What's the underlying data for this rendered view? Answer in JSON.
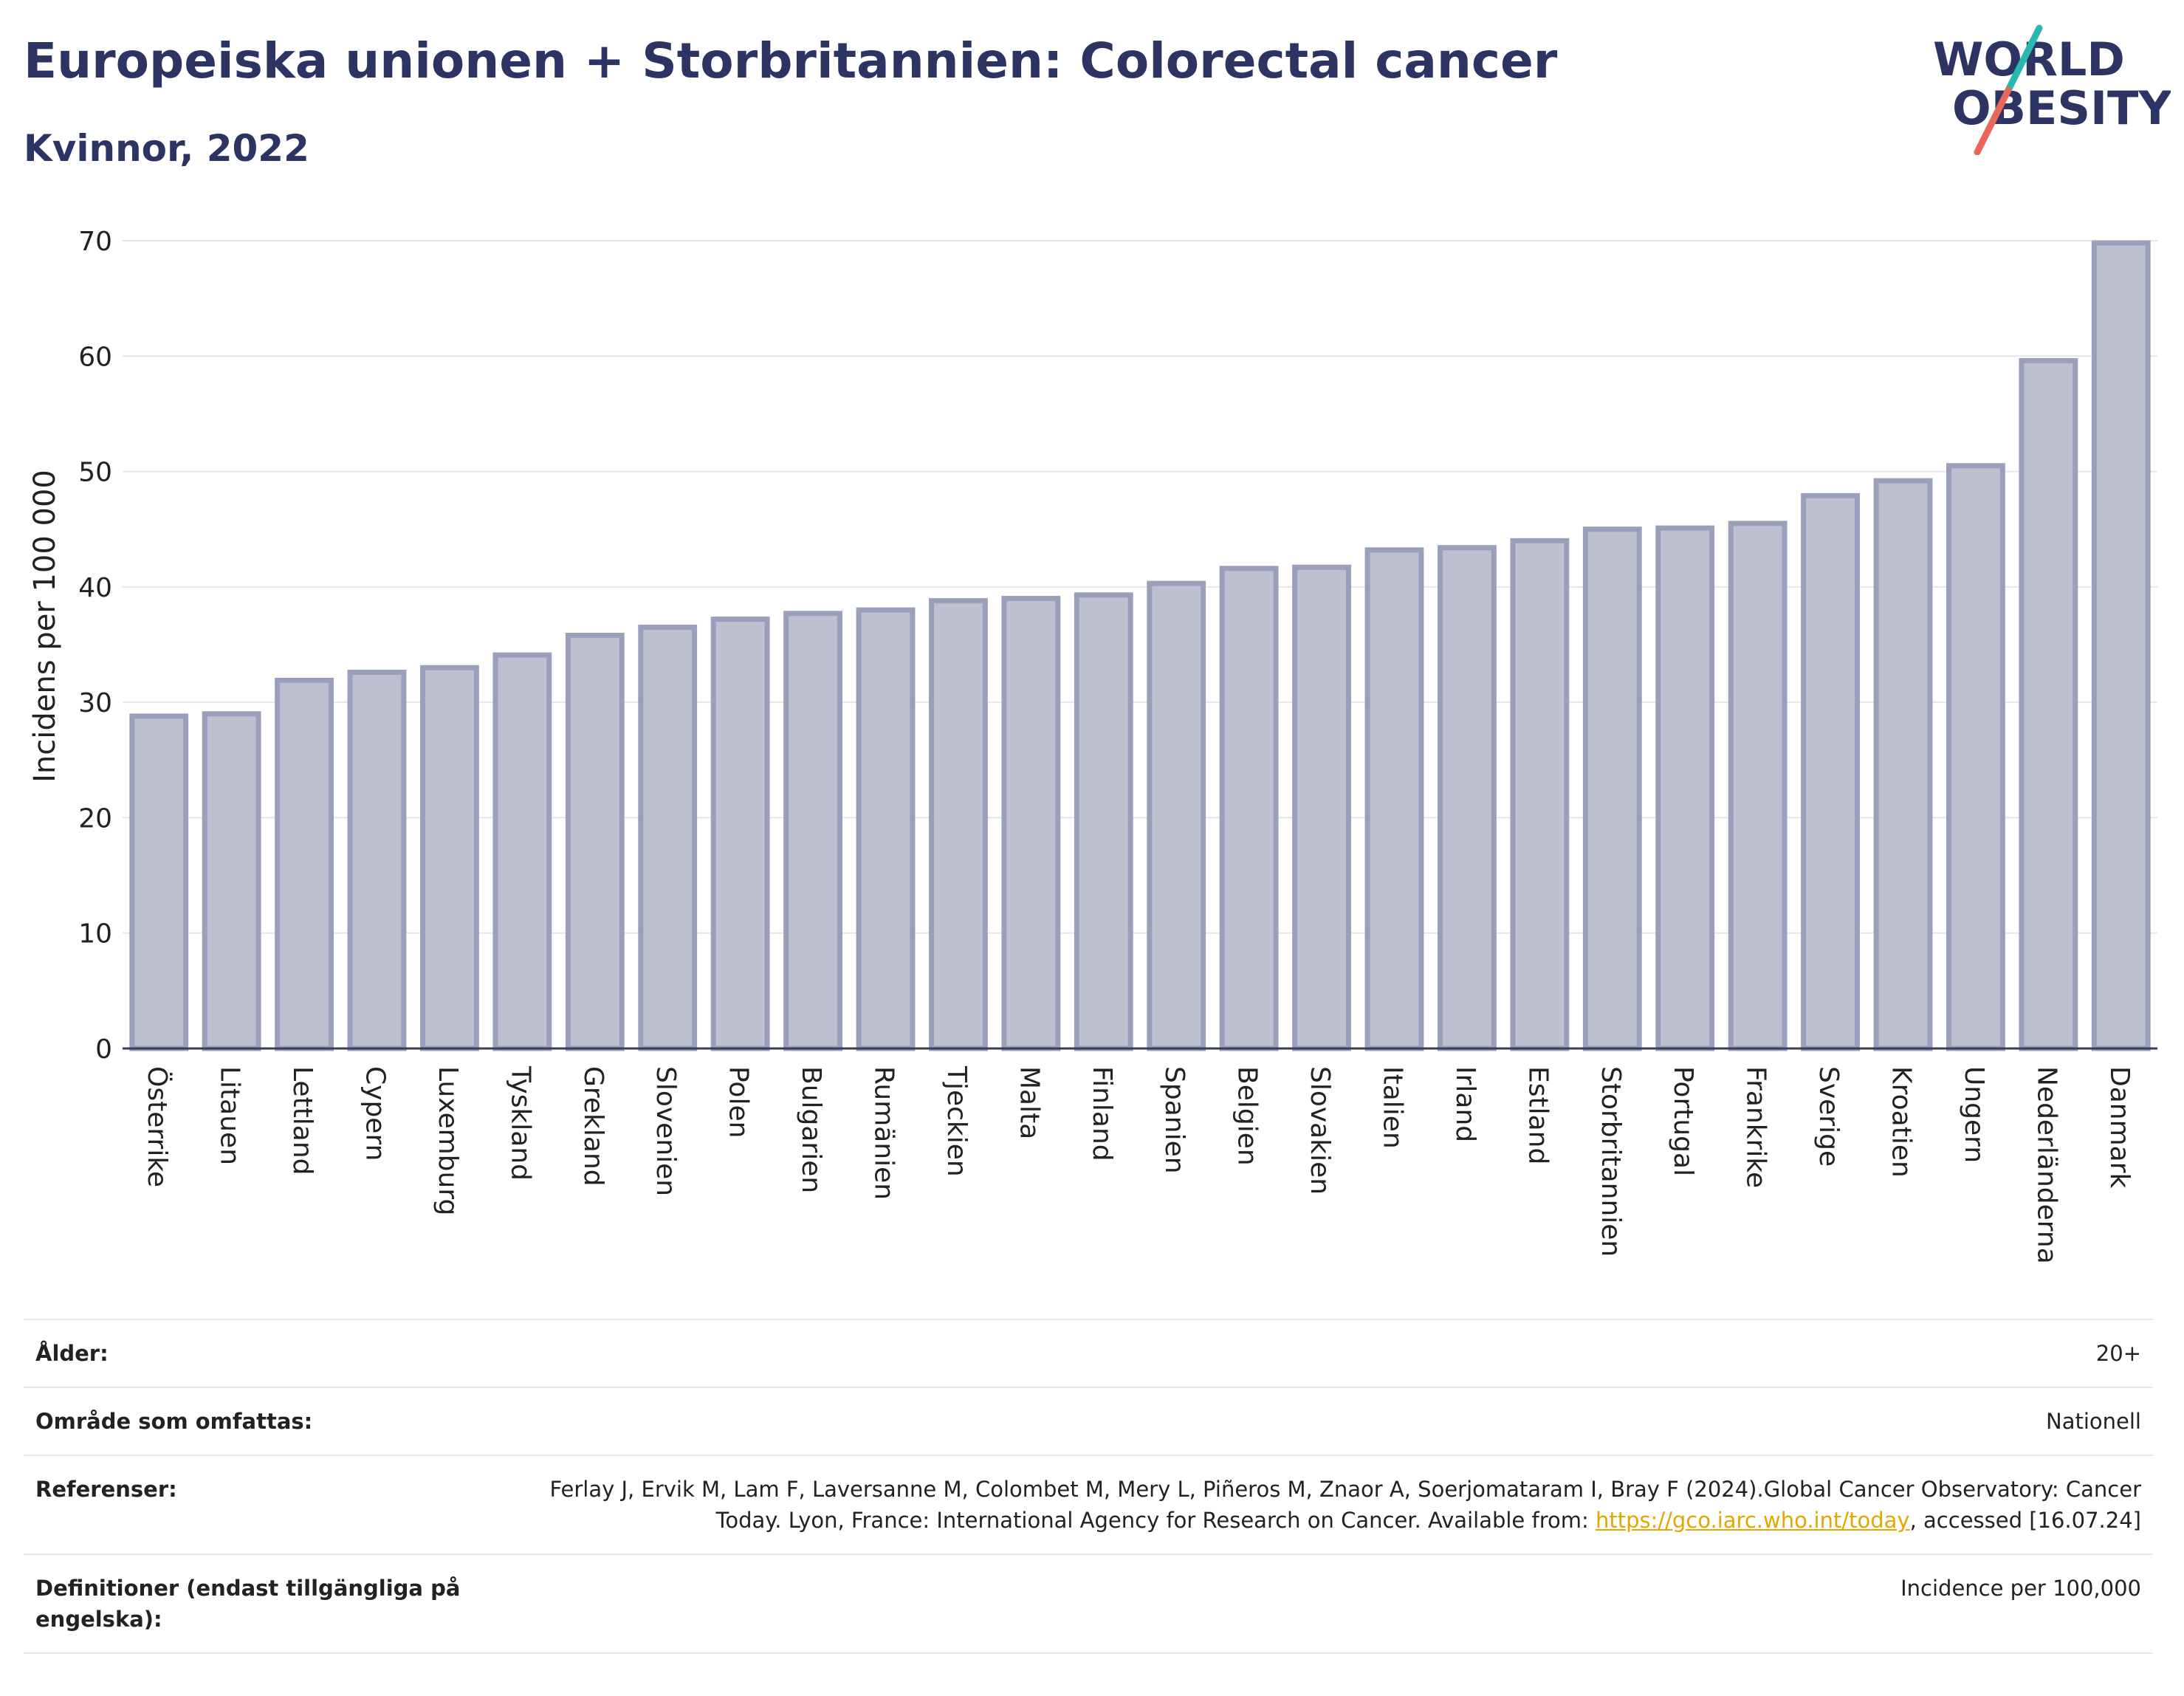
{
  "header": {
    "title": "Europeiska unionen + Storbritannien: Colorectal cancer",
    "subtitle": "Kvinnor, 2022"
  },
  "logo": {
    "line1": "WORLD",
    "line2": "OBESITY",
    "accent_colors": [
      "#2ab7b0",
      "#e8685a"
    ],
    "text_color": "#2b3462"
  },
  "chart_data": {
    "type": "bar",
    "title": "Europeiska unionen + Storbritannien: Colorectal cancer",
    "subtitle": "Kvinnor, 2022",
    "xlabel": "",
    "ylabel": "Incidens per 100 000",
    "ylim": [
      0,
      70
    ],
    "yticks": [
      0,
      10,
      20,
      30,
      40,
      50,
      60,
      70
    ],
    "grid": true,
    "bar_fill": "#bcc0cf",
    "bar_stroke": "#9aa0bb",
    "categories": [
      "Österrike",
      "Litauen",
      "Lettland",
      "Cypern",
      "Luxemburg",
      "Tyskland",
      "Grekland",
      "Slovenien",
      "Polen",
      "Bulgarien",
      "Rumänien",
      "Tjeckien",
      "Malta",
      "Finland",
      "Spanien",
      "Belgien",
      "Slovakien",
      "Italien",
      "Irland",
      "Estland",
      "Storbritannien",
      "Portugal",
      "Frankrike",
      "Sverige",
      "Kroatien",
      "Ungern",
      "Nederländerna",
      "Danmark"
    ],
    "values": [
      28.8,
      29.0,
      31.9,
      32.6,
      33.0,
      34.1,
      35.8,
      36.5,
      37.2,
      37.7,
      38.0,
      38.8,
      39.0,
      39.3,
      40.3,
      41.6,
      41.7,
      43.2,
      43.4,
      44.0,
      45.0,
      45.1,
      45.5,
      47.9,
      49.2,
      50.5,
      59.6,
      69.8
    ]
  },
  "info_table": {
    "age_label": "Ålder:",
    "age_value": "20+",
    "area_label": "Område som omfattas:",
    "area_value": "Nationell",
    "refs_label": "Referenser:",
    "refs_text_1": "Ferlay J, Ervik M, Lam F, Laversanne M, Colombet M, Mery L, Piñeros M, Znaor A, Soerjomataram I, Bray F (2024).Global Cancer Observatory: Cancer Today. Lyon, France: International Agency for Research on Cancer. Available from: ",
    "refs_link": "https://gco.iarc.who.int/today",
    "refs_text_2": ", accessed [16.07.24]",
    "defs_label": "Definitioner (endast tillgängliga på engelska):",
    "defs_value": "Incidence per 100,000"
  }
}
